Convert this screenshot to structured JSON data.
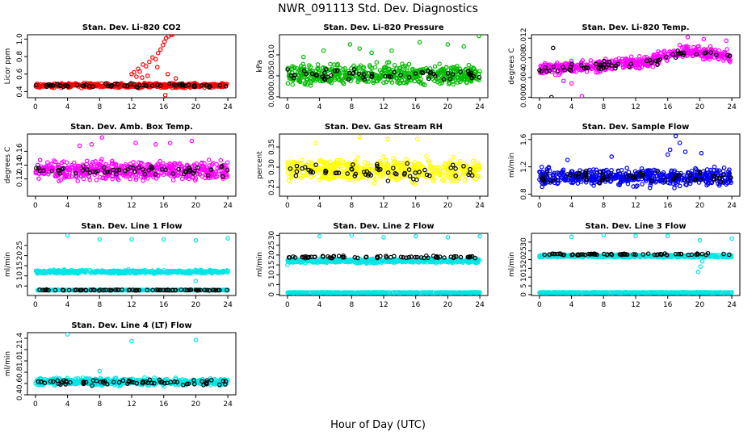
{
  "figure": {
    "title": "NWR_091113 Std. Dev. Diagnostics",
    "xlabel": "Hour of Day (UTC)"
  },
  "chart_data": [
    {
      "type": "scatter",
      "title": "Stan. Dev. Li-820 CO2",
      "ylabel": "Licor ppm",
      "xlim": [
        -1,
        25
      ],
      "ylim": [
        0.33,
        1.05
      ],
      "xticks": [
        "0",
        "4",
        "8",
        "12",
        "16",
        "20",
        "24"
      ],
      "yticks": [
        "0.4",
        "0.6",
        "0.8",
        "1.0"
      ],
      "colors": {
        "main": "#ff0000",
        "overlay": "#000000"
      },
      "series": [
        {
          "kind": "band",
          "color": "main",
          "y_center": 0.47,
          "y_spread": 0.035,
          "count": 480
        },
        {
          "kind": "points",
          "color": "main",
          "points": [
            [
              12.0,
              0.6
            ],
            [
              12.3,
              0.62
            ],
            [
              12.8,
              0.66
            ],
            [
              13.0,
              0.63
            ],
            [
              13.4,
              0.71
            ],
            [
              13.8,
              0.69
            ],
            [
              14.2,
              0.74
            ],
            [
              14.6,
              0.79
            ],
            [
              15.0,
              0.77
            ],
            [
              15.3,
              0.84
            ],
            [
              15.6,
              0.88
            ],
            [
              15.9,
              0.93
            ],
            [
              16.1,
              0.97
            ],
            [
              16.3,
              1.01
            ],
            [
              16.6,
              1.03
            ],
            [
              16.9,
              1.05
            ],
            [
              17.1,
              1.05
            ],
            [
              15.2,
              0.68
            ],
            [
              14.0,
              0.58
            ],
            [
              13.3,
              0.56
            ],
            [
              16.5,
              0.6
            ],
            [
              17.5,
              0.55
            ],
            [
              16.2,
              0.36
            ],
            [
              12.6,
              0.57
            ]
          ]
        },
        {
          "kind": "band",
          "color": "overlay",
          "y_center": 0.47,
          "y_spread": 0.03,
          "count": 60
        }
      ]
    },
    {
      "type": "scatter",
      "title": "Stan. Dev. Li-820 Pressure",
      "ylabel": "kPa",
      "xlim": [
        -1,
        25
      ],
      "ylim": [
        -0.0002,
        0.0148
      ],
      "xticks": [
        "0",
        "4",
        "8",
        "12",
        "16",
        "20",
        "24"
      ],
      "yticks": [
        "0.000",
        "0.005",
        "0.010"
      ],
      "colors": {
        "main": "#00bb00",
        "overlay": "#000000"
      },
      "series": [
        {
          "kind": "band",
          "color": "main",
          "y_center": 0.0052,
          "y_spread": 0.0035,
          "count": 520
        },
        {
          "kind": "points",
          "color": "main",
          "points": [
            [
              4.5,
              0.011
            ],
            [
              7.8,
              0.0125
            ],
            [
              9.0,
              0.0115
            ],
            [
              13.0,
              0.011
            ],
            [
              16.5,
              0.013
            ],
            [
              20.0,
              0.0125
            ],
            [
              23.9,
              0.0145
            ],
            [
              22.0,
              0.012
            ],
            [
              10.5,
              0.0105
            ],
            [
              2.0,
              0.0095
            ]
          ]
        },
        {
          "kind": "band",
          "color": "overlay",
          "y_center": 0.0055,
          "y_spread": 0.0025,
          "count": 60
        }
      ]
    },
    {
      "type": "scatter",
      "title": "Stan. Dev. Li-820 Temp.",
      "ylabel": "degrees C",
      "xlim": [
        -1,
        25
      ],
      "ylim": [
        -0.0001,
        0.0127
      ],
      "xticks": [
        "0",
        "4",
        "8",
        "12",
        "16",
        "20",
        "24"
      ],
      "yticks": [
        "0.000",
        "0.004",
        "0.008",
        "0.012"
      ],
      "colors": {
        "main": "#ff00ff",
        "overlay": "#000000"
      },
      "series": [
        {
          "kind": "trend-band",
          "color": "main",
          "y_start": 0.0057,
          "y_end": 0.0078,
          "y_peak": 0.0095,
          "peak_x": 19,
          "y_spread": 0.0018,
          "count": 480
        },
        {
          "kind": "points",
          "color": "main",
          "points": [
            [
              5.3,
              0.0002
            ],
            [
              4.0,
              0.0028
            ],
            [
              3.0,
              0.0033
            ],
            [
              20.5,
              0.0118
            ],
            [
              18.5,
              0.0122
            ],
            [
              23.3,
              0.0115
            ]
          ]
        },
        {
          "kind": "trend-band",
          "color": "overlay",
          "y_start": 0.0058,
          "y_end": 0.0078,
          "y_peak": 0.009,
          "peak_x": 19,
          "y_spread": 0.0012,
          "count": 60
        },
        {
          "kind": "points",
          "color": "overlay",
          "points": [
            [
              1.5,
              0.0
            ],
            [
              1.7,
              0.01
            ]
          ]
        }
      ]
    },
    {
      "type": "scatter",
      "title": "Stan. Dev. Amb. Box Temp.",
      "ylabel": "degrees C",
      "xlim": [
        -1,
        25
      ],
      "ylim": [
        0.095,
        0.185
      ],
      "xticks": [
        "0",
        "4",
        "8",
        "12",
        "16",
        "20",
        "24"
      ],
      "yticks": [
        "0.12",
        "0.14",
        "0.16"
      ],
      "colors": {
        "main": "#ff00ff",
        "overlay": "#000000"
      },
      "series": [
        {
          "kind": "band",
          "color": "main",
          "y_center": 0.132,
          "y_spread": 0.019,
          "count": 520
        },
        {
          "kind": "points",
          "color": "main",
          "points": [
            [
              8.3,
              0.18
            ],
            [
              7.0,
              0.17
            ],
            [
              12.5,
              0.172
            ],
            [
              15.0,
              0.17
            ],
            [
              19.5,
              0.175
            ],
            [
              5.5,
              0.168
            ],
            [
              16.8,
              0.172
            ]
          ]
        },
        {
          "kind": "band",
          "color": "overlay",
          "y_center": 0.132,
          "y_spread": 0.012,
          "count": 60
        }
      ]
    },
    {
      "type": "scatter",
      "title": "Stan. Dev. Gas Stream RH",
      "ylabel": "percent",
      "xlim": [
        -1,
        25
      ],
      "ylim": [
        0.228,
        0.382
      ],
      "xticks": [
        "0",
        "4",
        "8",
        "12",
        "16",
        "20",
        "24"
      ],
      "yticks": [
        "0.25",
        "0.30",
        "0.35"
      ],
      "colors": {
        "main": "#ffff00",
        "overlay": "#000000"
      },
      "series": [
        {
          "kind": "band",
          "color": "main",
          "y_center": 0.292,
          "y_spread": 0.04,
          "count": 520
        },
        {
          "kind": "points",
          "color": "main",
          "points": [
            [
              9.0,
              0.375
            ],
            [
              12.5,
              0.37
            ],
            [
              16.2,
              0.37
            ],
            [
              3.5,
              0.36
            ]
          ]
        },
        {
          "kind": "band",
          "color": "overlay",
          "y_center": 0.29,
          "y_spread": 0.028,
          "count": 60
        }
      ]
    },
    {
      "type": "scatter",
      "title": "Stan. Dev. Sample Flow",
      "ylabel": "ml/min",
      "xlim": [
        -1,
        25
      ],
      "ylim": [
        0.77,
        1.68
      ],
      "xticks": [
        "0",
        "4",
        "8",
        "12",
        "16",
        "20",
        "24"
      ],
      "yticks": [
        "0.8",
        "1.2",
        "1.6"
      ],
      "colors": {
        "main": "#0000ee",
        "overlay": "#000000"
      },
      "series": [
        {
          "kind": "band",
          "color": "main",
          "y_center": 1.05,
          "y_spread": 0.17,
          "count": 520
        },
        {
          "kind": "points",
          "color": "main",
          "points": [
            [
              17.0,
              1.65
            ],
            [
              17.5,
              1.55
            ],
            [
              16.3,
              1.45
            ],
            [
              18.2,
              1.42
            ],
            [
              20.2,
              1.4
            ],
            [
              16.0,
              1.38
            ],
            [
              9.0,
              1.35
            ],
            [
              3.5,
              1.3
            ]
          ]
        },
        {
          "kind": "band",
          "color": "overlay",
          "y_center": 1.05,
          "y_spread": 0.13,
          "count": 60
        }
      ]
    },
    {
      "type": "scatter",
      "title": "Stan. Dev. Line 1 Flow",
      "ylabel": "ml/min",
      "xlim": [
        -1,
        25
      ],
      "ylim": [
        0.3,
        31
      ],
      "xticks": [
        "0",
        "4",
        "8",
        "12",
        "16",
        "20",
        "24"
      ],
      "yticks": [
        "5",
        "10",
        "15",
        "20",
        "25"
      ],
      "colors": {
        "main": "#00e5e5",
        "overlay": "#000000"
      },
      "series": [
        {
          "kind": "band",
          "color": "main",
          "y_center": 12.0,
          "y_spread": 1.2,
          "count": 480
        },
        {
          "kind": "band",
          "color": "main",
          "y_center": 3.0,
          "y_spread": 0.2,
          "count": 400
        },
        {
          "kind": "points",
          "color": "main",
          "points": [
            [
              4.0,
              30.0
            ],
            [
              8.0,
              28.0
            ],
            [
              12.0,
              28.0
            ],
            [
              16.0,
              28.0
            ],
            [
              20.0,
              27.5
            ],
            [
              24.0,
              28.5
            ],
            [
              20.0,
              7.5
            ]
          ]
        },
        {
          "kind": "band",
          "color": "overlay",
          "y_center": 3.0,
          "y_spread": 0.3,
          "count": 80
        }
      ]
    },
    {
      "type": "scatter",
      "title": "Stan. Dev. Line 2 Flow",
      "ylabel": "ml/min",
      "xlim": [
        -1,
        25
      ],
      "ylim": [
        -0.5,
        31
      ],
      "xticks": [
        "0",
        "4",
        "8",
        "12",
        "16",
        "20",
        "24"
      ],
      "yticks": [
        "0",
        "5",
        "10",
        "15",
        "20",
        "25",
        "30"
      ],
      "colors": {
        "main": "#00e5e5",
        "overlay": "#000000"
      },
      "series": [
        {
          "kind": "band",
          "color": "main",
          "y_center": 17.0,
          "y_spread": 1.4,
          "count": 480
        },
        {
          "kind": "band",
          "color": "main",
          "y_center": 1.0,
          "y_spread": 0.25,
          "count": 400
        },
        {
          "kind": "points",
          "color": "main",
          "points": [
            [
              4.0,
              29.5
            ],
            [
              8.0,
              30.0
            ],
            [
              12.0,
              29.0
            ],
            [
              16.0,
              29.5
            ],
            [
              20.0,
              29.0
            ],
            [
              24.0,
              29.5
            ],
            [
              0.0,
              15.0
            ]
          ]
        },
        {
          "kind": "band",
          "color": "overlay",
          "y_center": 19.0,
          "y_spread": 0.8,
          "count": 70
        }
      ]
    },
    {
      "type": "scatter",
      "title": "Stan. Dev. Line 3 Flow",
      "ylabel": "ml/min",
      "xlim": [
        -1,
        25
      ],
      "ylim": [
        -0.5,
        35
      ],
      "xticks": [
        "0",
        "4",
        "8",
        "12",
        "16",
        "20",
        "24"
      ],
      "yticks": [
        "0",
        "5",
        "10",
        "15",
        "20",
        "25",
        "30"
      ],
      "colors": {
        "main": "#00e5e5",
        "overlay": "#000000"
      },
      "series": [
        {
          "kind": "band",
          "color": "main",
          "y_center": 22.0,
          "y_spread": 1.0,
          "count": 480
        },
        {
          "kind": "band",
          "color": "main",
          "y_center": 1.2,
          "y_spread": 0.3,
          "count": 400
        },
        {
          "kind": "points",
          "color": "main",
          "points": [
            [
              4.0,
              33.0
            ],
            [
              8.0,
              34.0
            ],
            [
              12.0,
              33.5
            ],
            [
              16.0,
              33.5
            ],
            [
              20.0,
              31.0
            ],
            [
              24.0,
              32.0
            ],
            [
              19.8,
              13.0
            ],
            [
              20.1,
              16.0
            ],
            [
              20.3,
              19.0
            ]
          ]
        },
        {
          "kind": "band",
          "color": "overlay",
          "y_center": 23.0,
          "y_spread": 0.8,
          "count": 70
        }
      ]
    },
    {
      "type": "scatter",
      "title": "Stan. Dev. Line 4 (LT) Flow",
      "ylabel": "ml/min",
      "xlim": [
        -1,
        25
      ],
      "ylim": [
        0.4,
        1.5
      ],
      "xticks": [
        "0",
        "4",
        "8",
        "12",
        "16",
        "20",
        "24"
      ],
      "yticks": [
        "0.4",
        "0.6",
        "0.8",
        "1.0",
        "1.2",
        "1.4"
      ],
      "colors": {
        "main": "#00e5e5",
        "overlay": "#000000"
      },
      "series": [
        {
          "kind": "band",
          "color": "main",
          "y_center": 0.63,
          "y_spread": 0.09,
          "count": 520
        },
        {
          "kind": "points",
          "color": "main",
          "points": [
            [
              4.0,
              1.47
            ],
            [
              12.0,
              1.35
            ],
            [
              20.0,
              1.37
            ],
            [
              8.0,
              0.82
            ]
          ]
        },
        {
          "kind": "band",
          "color": "overlay",
          "y_center": 0.62,
          "y_spread": 0.08,
          "count": 70
        }
      ]
    }
  ]
}
